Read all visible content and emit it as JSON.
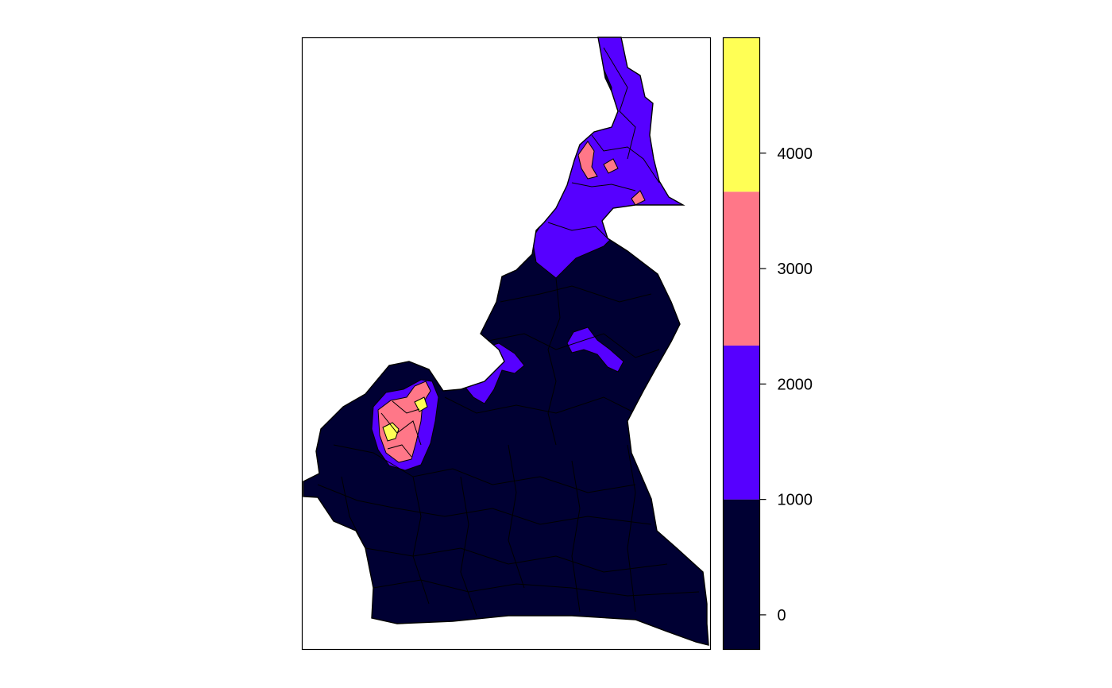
{
  "map": {
    "class_colors": [
      "#000033",
      "#5600FF",
      "#FF7788",
      "#FFFF55"
    ],
    "border_color": "#000000",
    "background": "#ffffff"
  },
  "legend": {
    "breaks": [
      -300,
      1000,
      2333,
      3666,
      5000
    ],
    "colors": [
      "#000033",
      "#5600FF",
      "#FF7788",
      "#FFFF55"
    ],
    "range": [
      -300,
      5000
    ],
    "ticks": [
      0,
      1000,
      2000,
      3000,
      4000
    ],
    "tick_labels": [
      "0",
      "1000",
      "2000",
      "3000",
      "4000"
    ]
  }
}
